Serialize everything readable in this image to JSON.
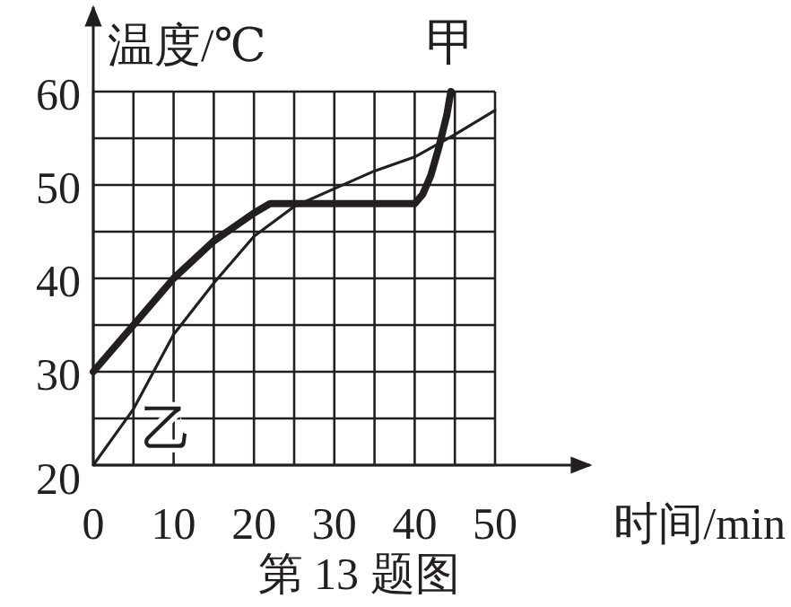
{
  "chart_data": {
    "type": "line",
    "xlabel": "时间/min",
    "ylabel": "温度/℃",
    "xlim": [
      0,
      50
    ],
    "ylim": [
      20,
      60
    ],
    "xticks": [
      0,
      {
        "value": 5,
        "label": null
      },
      10,
      {
        "value": 15,
        "label": null
      },
      20,
      {
        "value": 25,
        "label": null
      },
      30,
      {
        "value": 35,
        "label": null
      },
      40,
      {
        "value": 45,
        "label": null
      },
      50
    ],
    "yticks": [
      20,
      {
        "value": 25,
        "label": null
      },
      30,
      {
        "value": 35,
        "label": null
      },
      40,
      {
        "value": 45,
        "label": null
      },
      50,
      {
        "value": 55,
        "label": null
      },
      60
    ],
    "grid": true,
    "line_style": "solid",
    "annotations": [
      "第 13 题图"
    ],
    "series": [
      {
        "name": "甲",
        "color": "#231f20",
        "x": [
          0,
          5,
          10,
          15,
          20,
          22,
          25,
          30,
          35,
          40,
          41,
          42,
          43,
          44,
          44.5
        ],
        "values": [
          30,
          35,
          40,
          44,
          47,
          48,
          48,
          48,
          48,
          48,
          49,
          51,
          54,
          57.5,
          60
        ]
      },
      {
        "name": "乙",
        "color": "#231f20",
        "x": [
          0,
          5,
          10,
          15,
          20,
          25,
          30,
          35,
          40,
          45,
          50
        ],
        "values": [
          20,
          26,
          34,
          39.5,
          44.5,
          47.7,
          49.6,
          51.5,
          53,
          55.4,
          58
        ]
      }
    ]
  }
}
